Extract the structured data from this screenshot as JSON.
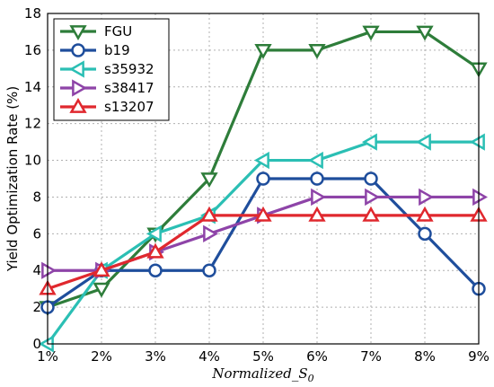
{
  "chart_data": {
    "type": "line",
    "title": "",
    "xlabel": "Normalized_S",
    "xlabel_subscript": "0",
    "ylabel": "Yield Optimization Rate (%)",
    "categories": [
      "1%",
      "2%",
      "3%",
      "4%",
      "5%",
      "6%",
      "7%",
      "8%",
      "9%"
    ],
    "ylim": [
      0,
      18
    ],
    "yticks": [
      "0",
      "2",
      "4",
      "6",
      "8",
      "10",
      "12",
      "14",
      "16",
      "18"
    ],
    "grid": true,
    "legend_position": "top-left",
    "series": [
      {
        "name": "FGU",
        "marker": "triangle-down",
        "color": "#2e7d3a",
        "values": [
          2,
          3,
          6,
          9,
          16,
          16,
          17,
          17,
          15
        ]
      },
      {
        "name": "b19",
        "marker": "circle",
        "color": "#1f4e9c",
        "values": [
          2,
          4,
          4,
          4,
          9,
          9,
          9,
          6,
          3
        ]
      },
      {
        "name": "s35932",
        "marker": "triangle-left",
        "color": "#2bbfb4",
        "values": [
          0,
          4,
          6,
          7,
          10,
          10,
          11,
          11,
          11
        ]
      },
      {
        "name": "s38417",
        "marker": "triangle-right",
        "color": "#8e44a8",
        "values": [
          4,
          4,
          5,
          6,
          7,
          8,
          8,
          8,
          8
        ]
      },
      {
        "name": "s13207",
        "marker": "triangle-up",
        "color": "#e0282e",
        "values": [
          3,
          4,
          5,
          7,
          7,
          7,
          7,
          7,
          7
        ]
      }
    ]
  }
}
